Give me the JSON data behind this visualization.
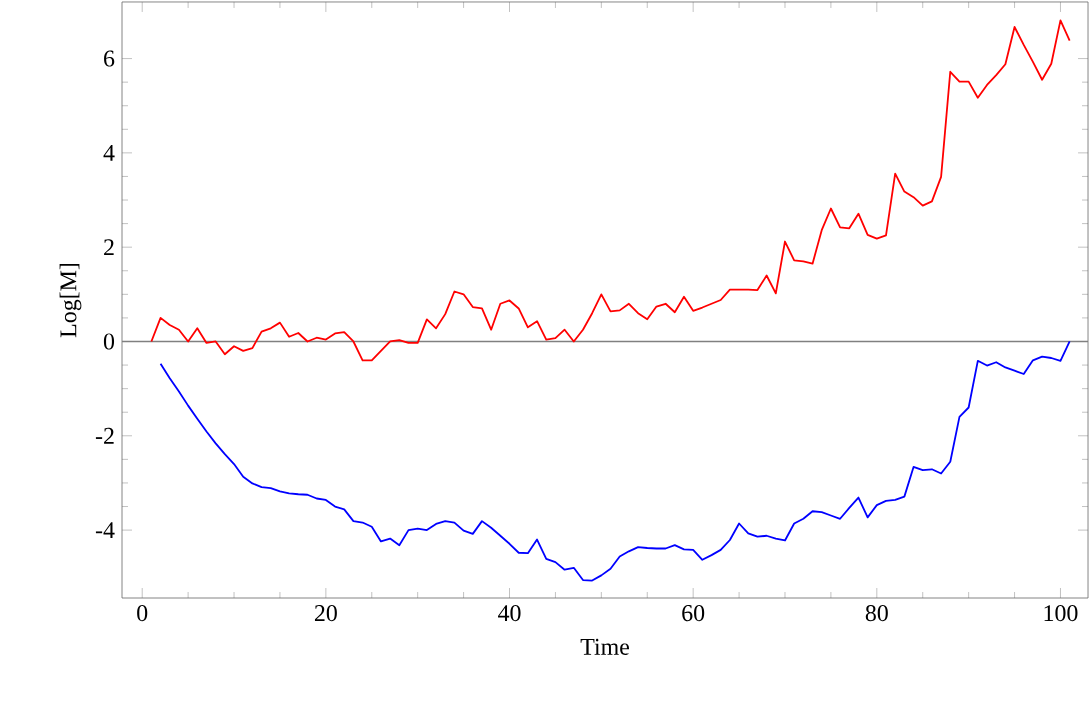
{
  "chart_data": {
    "type": "line",
    "xlabel": "Time",
    "ylabel": "Log[M]",
    "xlim": [
      -2.2,
      103
    ],
    "ylim": [
      -5.44,
      7.2
    ],
    "xticks": [
      0,
      20,
      40,
      60,
      80,
      100
    ],
    "yticks": [
      -4,
      -2,
      0,
      2,
      4,
      6
    ],
    "marker": "none",
    "line_style": "solid",
    "ref_lines": [
      {
        "axis": "y",
        "value": 0,
        "color": "#808080"
      }
    ],
    "series": [
      {
        "color": "#ff0000",
        "x": [
          1,
          2,
          3,
          4,
          5,
          6,
          7,
          8,
          9,
          10,
          11,
          12,
          13,
          14,
          15,
          16,
          17,
          18,
          19,
          20,
          21,
          22,
          23,
          24,
          25,
          26,
          27,
          28,
          29,
          30,
          31,
          32,
          33,
          34,
          35,
          36,
          37,
          38,
          39,
          40,
          41,
          42,
          43,
          44,
          45,
          46,
          47,
          48,
          49,
          50,
          51,
          52,
          53,
          54,
          55,
          56,
          57,
          58,
          59,
          60,
          61,
          62,
          63,
          64,
          65,
          66,
          67,
          68,
          69,
          70,
          71,
          72,
          73,
          74,
          75,
          76,
          77,
          78,
          79,
          80,
          81,
          82,
          83,
          84,
          85,
          86,
          87,
          88,
          89,
          90,
          91,
          92,
          93,
          94,
          95,
          96,
          97,
          98,
          99,
          100,
          101
        ],
        "values": [
          0,
          0.5,
          0.35,
          0.25,
          0,
          0.28,
          -0.03,
          0,
          -0.27,
          -0.1,
          -0.2,
          -0.14,
          0.21,
          0.28,
          0.4,
          0.1,
          0.18,
          0,
          0.08,
          0.04,
          0.17,
          0.2,
          0,
          -0.4,
          -0.4,
          -0.2,
          0,
          0.03,
          -0.03,
          -0.03,
          0.47,
          0.28,
          0.58,
          1.06,
          1.0,
          0.73,
          0.7,
          0.25,
          0.8,
          0.87,
          0.7,
          0.3,
          0.43,
          0.04,
          0.07,
          0.25,
          0,
          0.25,
          0.6,
          1.0,
          0.64,
          0.66,
          0.8,
          0.6,
          0.47,
          0.74,
          0.8,
          0.62,
          0.95,
          0.65,
          0.72,
          0.8,
          0.88,
          1.1,
          1.1,
          1.1,
          1.09,
          1.4,
          1.02,
          2.12,
          1.72,
          1.7,
          1.65,
          2.36,
          2.82,
          2.42,
          2.4,
          2.71,
          2.26,
          2.18,
          2.25,
          3.56,
          3.18,
          3.06,
          2.88,
          2.97,
          3.49,
          5.72,
          5.51,
          5.51,
          5.17,
          5.44,
          5.65,
          5.88,
          6.67,
          6.29,
          5.93,
          5.55,
          5.89,
          6.81,
          6.38
        ]
      },
      {
        "color": "#0000ff",
        "x": [
          2,
          3,
          4,
          5,
          6,
          7,
          8,
          9,
          10,
          11,
          12,
          13,
          14,
          15,
          16,
          17,
          18,
          19,
          20,
          21,
          22,
          23,
          24,
          25,
          26,
          27,
          28,
          29,
          30,
          31,
          32,
          33,
          34,
          35,
          36,
          37,
          38,
          39,
          40,
          41,
          42,
          43,
          44,
          45,
          46,
          47,
          48,
          49,
          50,
          51,
          52,
          53,
          54,
          55,
          56,
          57,
          58,
          59,
          60,
          61,
          62,
          63,
          64,
          65,
          66,
          67,
          68,
          69,
          70,
          71,
          72,
          73,
          74,
          75,
          76,
          77,
          78,
          79,
          80,
          81,
          82,
          83,
          84,
          85,
          86,
          87,
          88,
          89,
          90,
          91,
          92,
          93,
          94,
          95,
          96,
          97,
          98,
          99,
          100,
          101
        ],
        "values": [
          -0.47,
          -0.78,
          -1.06,
          -1.36,
          -1.64,
          -1.91,
          -2.16,
          -2.39,
          -2.6,
          -2.87,
          -3.01,
          -3.09,
          -3.11,
          -3.18,
          -3.22,
          -3.24,
          -3.25,
          -3.33,
          -3.36,
          -3.5,
          -3.56,
          -3.81,
          -3.84,
          -3.93,
          -4.24,
          -4.18,
          -4.32,
          -4.0,
          -3.97,
          -4.0,
          -3.87,
          -3.81,
          -3.84,
          -4.01,
          -4.08,
          -3.81,
          -3.95,
          -4.12,
          -4.29,
          -4.48,
          -4.49,
          -4.2,
          -4.61,
          -4.68,
          -4.84,
          -4.8,
          -5.06,
          -5.07,
          -4.96,
          -4.82,
          -4.56,
          -4.45,
          -4.36,
          -4.38,
          -4.39,
          -4.39,
          -4.32,
          -4.41,
          -4.42,
          -4.63,
          -4.53,
          -4.42,
          -4.21,
          -3.86,
          -4.07,
          -4.14,
          -4.12,
          -4.18,
          -4.22,
          -3.86,
          -3.76,
          -3.6,
          -3.62,
          -3.69,
          -3.76,
          -3.53,
          -3.31,
          -3.73,
          -3.47,
          -3.38,
          -3.36,
          -3.29,
          -2.66,
          -2.73,
          -2.71,
          -2.8,
          -2.55,
          -1.6,
          -1.4,
          -0.41,
          -0.51,
          -0.44,
          -0.55,
          -0.62,
          -0.69,
          -0.4,
          -0.32,
          -0.35,
          -0.41,
          0
        ]
      }
    ]
  }
}
